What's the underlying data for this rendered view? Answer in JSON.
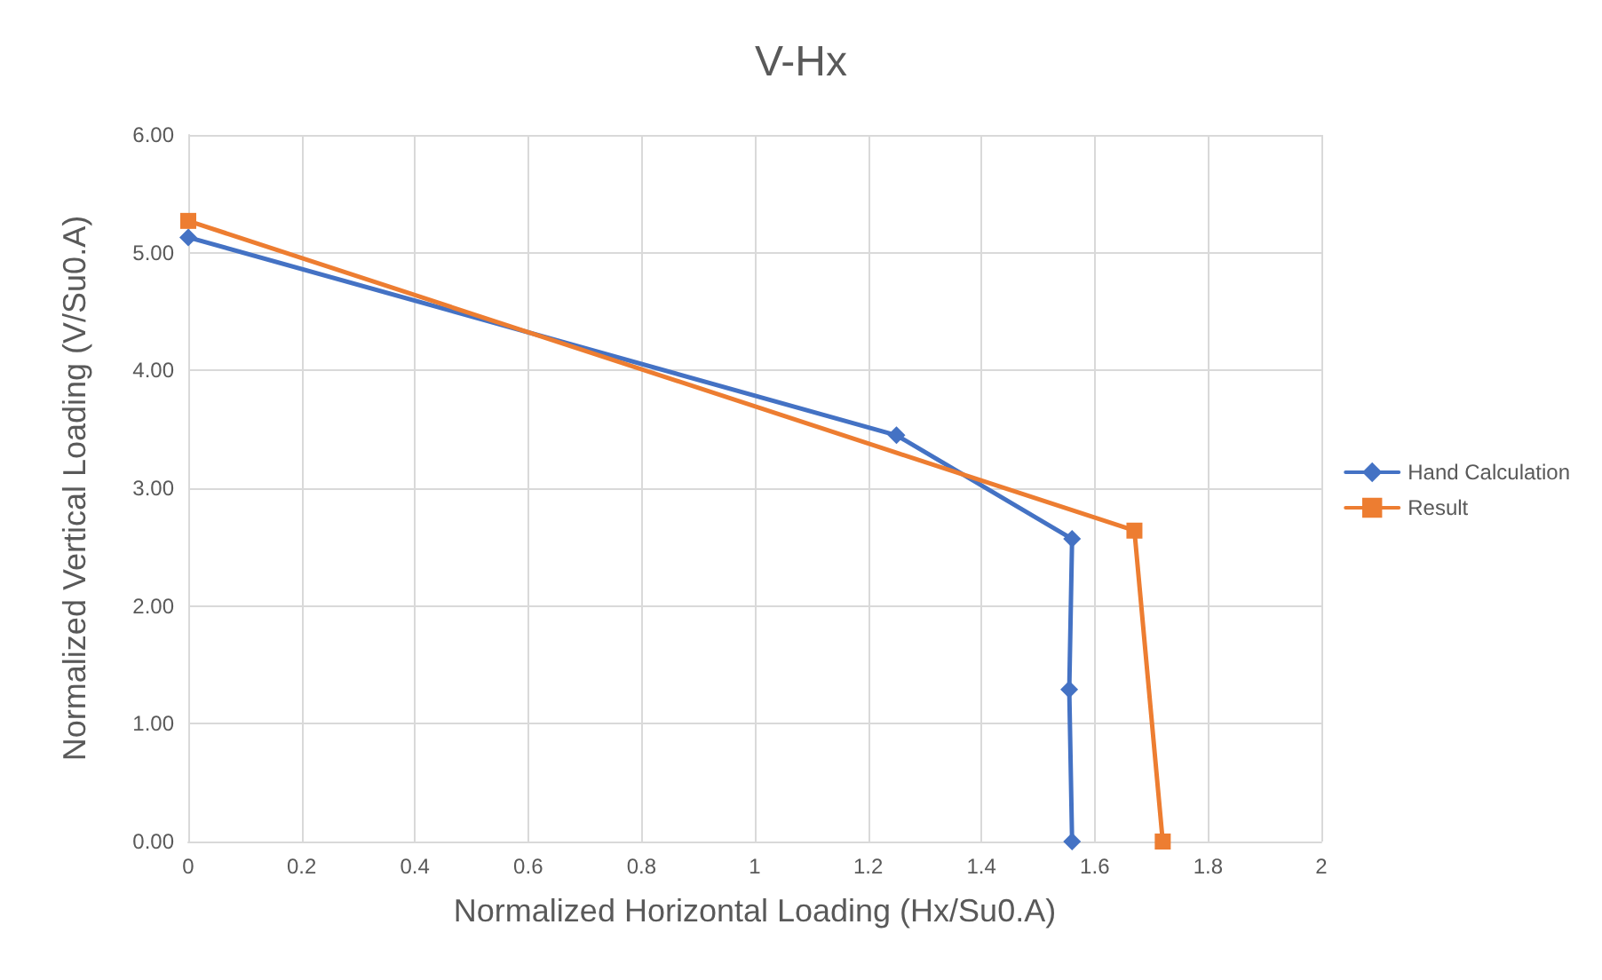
{
  "chart_data": {
    "type": "line",
    "title": "V-Hx",
    "xlabel": "Normalized Horizontal Loading (Hx/Su0.A)",
    "ylabel": "Normalized Vertical Loading (V/Su0.A)",
    "xlim": [
      0,
      2
    ],
    "xticks": [
      0,
      0.2,
      0.4,
      0.6,
      0.8,
      1,
      1.2,
      1.4,
      1.6,
      1.8,
      2
    ],
    "ylim": [
      0,
      6
    ],
    "yticks": [
      {
        "value": 0,
        "label": "0.00"
      },
      {
        "value": 1,
        "label": "1.00"
      },
      {
        "value": 2,
        "label": "2.00"
      },
      {
        "value": 3,
        "label": "3.00"
      },
      {
        "value": 4,
        "label": "4.00"
      },
      {
        "value": 5,
        "label": "5.00"
      },
      {
        "value": 6,
        "label": "6.00"
      }
    ],
    "grid": true,
    "legend": "right",
    "series": [
      {
        "name": "Hand Calculation",
        "color": "#4472c4",
        "marker": "diamond",
        "x": [
          0,
          1.25,
          1.56,
          1.555,
          1.56
        ],
        "values": [
          5.13,
          3.45,
          2.57,
          1.29,
          0
        ]
      },
      {
        "name": "Result",
        "color": "#ed7d31",
        "marker": "square",
        "x": [
          0,
          1.67,
          1.72
        ],
        "values": [
          5.27,
          2.64,
          0
        ]
      }
    ]
  }
}
